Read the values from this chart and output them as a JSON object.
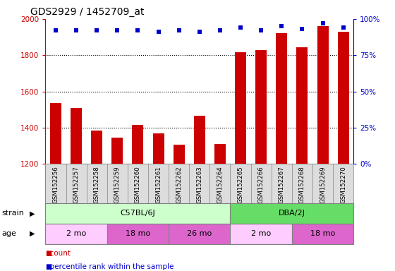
{
  "title": "GDS2929 / 1452709_at",
  "samples": [
    "GSM152256",
    "GSM152257",
    "GSM152258",
    "GSM152259",
    "GSM152260",
    "GSM152261",
    "GSM152262",
    "GSM152263",
    "GSM152264",
    "GSM152265",
    "GSM152266",
    "GSM152267",
    "GSM152268",
    "GSM152269",
    "GSM152270"
  ],
  "counts": [
    1535,
    1510,
    1385,
    1345,
    1415,
    1370,
    1305,
    1465,
    1310,
    1815,
    1830,
    1920,
    1845,
    1960,
    1930
  ],
  "percentile": [
    92,
    92,
    92,
    92,
    92,
    91,
    92,
    91,
    92,
    94,
    92,
    95,
    93,
    97,
    94
  ],
  "ylim_left": [
    1200,
    2000
  ],
  "ylim_right": [
    0,
    100
  ],
  "bar_color": "#cc0000",
  "dot_color": "#0000cc",
  "strain_groups": [
    {
      "label": "C57BL/6J",
      "start": 0,
      "end": 9,
      "color": "#ccffcc"
    },
    {
      "label": "DBA/2J",
      "start": 9,
      "end": 15,
      "color": "#66dd66"
    }
  ],
  "age_groups": [
    {
      "label": "2 mo",
      "start": 0,
      "end": 3,
      "color": "#ffccff"
    },
    {
      "label": "18 mo",
      "start": 3,
      "end": 6,
      "color": "#dd66cc"
    },
    {
      "label": "26 mo",
      "start": 6,
      "end": 9,
      "color": "#dd66cc"
    },
    {
      "label": "2 mo",
      "start": 9,
      "end": 12,
      "color": "#ffccff"
    },
    {
      "label": "18 mo",
      "start": 12,
      "end": 15,
      "color": "#dd66cc"
    }
  ],
  "left_tick_color": "#cc0000",
  "right_tick_color": "#0000cc",
  "yticks_left": [
    1200,
    1400,
    1600,
    1800,
    2000
  ],
  "yticks_right": [
    0,
    25,
    50,
    75,
    100
  ],
  "grid_lines": [
    1400,
    1600,
    1800
  ]
}
